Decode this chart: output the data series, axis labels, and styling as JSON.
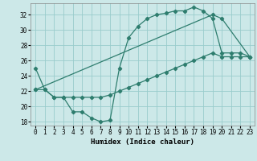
{
  "xlabel": "Humidex (Indice chaleur)",
  "xlim": [
    -0.5,
    23.5
  ],
  "ylim": [
    17.5,
    33.5
  ],
  "yticks": [
    18,
    20,
    22,
    24,
    26,
    28,
    30,
    32
  ],
  "xticks": [
    0,
    1,
    2,
    3,
    4,
    5,
    6,
    7,
    8,
    9,
    10,
    11,
    12,
    13,
    14,
    15,
    16,
    17,
    18,
    19,
    20,
    21,
    22,
    23
  ],
  "bg_color": "#cce8e8",
  "grid_color": "#99cccc",
  "line_color": "#2e7d6e",
  "line1_x": [
    0,
    1,
    2,
    3,
    4,
    5,
    6,
    7,
    8,
    9,
    10,
    11,
    12,
    13,
    14,
    15,
    16,
    17,
    18,
    19,
    20,
    21,
    22,
    23
  ],
  "line1_y": [
    25.0,
    22.2,
    21.2,
    21.2,
    19.3,
    19.3,
    18.5,
    18.0,
    18.2,
    25.0,
    29.0,
    30.5,
    31.5,
    32.0,
    32.2,
    32.5,
    32.5,
    33.0,
    32.5,
    31.5,
    27.0,
    27.0,
    27.0,
    26.5
  ],
  "line2_x": [
    0,
    1,
    2,
    3,
    4,
    5,
    6,
    7,
    8,
    9,
    10,
    11,
    12,
    13,
    14,
    15,
    16,
    17,
    18,
    19,
    20,
    21,
    22,
    23
  ],
  "line2_y": [
    22.2,
    22.2,
    21.2,
    21.2,
    21.2,
    21.2,
    21.2,
    21.2,
    21.5,
    22.0,
    22.5,
    23.0,
    23.5,
    24.0,
    24.5,
    25.0,
    25.5,
    26.0,
    26.5,
    27.0,
    26.5,
    26.5,
    26.5,
    26.5
  ],
  "line3_x": [
    0,
    19,
    20,
    23
  ],
  "line3_y": [
    22.2,
    32.0,
    31.5,
    26.5
  ]
}
